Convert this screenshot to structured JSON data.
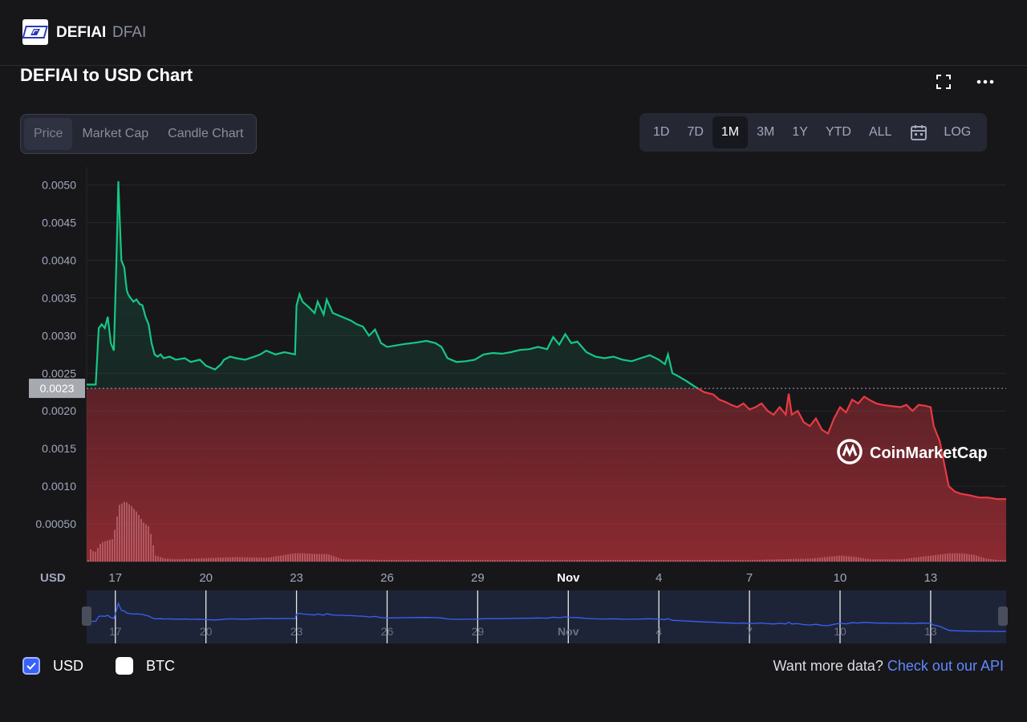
{
  "header": {
    "coin_name": "DEFIAI",
    "coin_symbol": "DFAI"
  },
  "chart_title": "DEFIAI to USD Chart",
  "chart_tabs": [
    "Price",
    "Market Cap",
    "Candle Chart"
  ],
  "active_chart_tab": "Price",
  "range_options": [
    "1D",
    "7D",
    "1M",
    "3M",
    "1Y",
    "YTD",
    "ALL"
  ],
  "active_range": "1M",
  "log_label": "LOG",
  "icons": {
    "fullscreen": "fullscreen-icon",
    "more": "more-icon",
    "calendar": "calendar-icon",
    "checkbox": "checkmark-icon"
  },
  "colors": {
    "up": "#16c784",
    "down": "#ea3943",
    "navigator": "#3861fb",
    "background": "#17171a"
  },
  "currency_toggles": [
    {
      "label": "USD",
      "checked": true
    },
    {
      "label": "BTC",
      "checked": false
    }
  ],
  "footer": {
    "prompt": "Want more data?",
    "link": "Check out our API"
  },
  "watermark": "CoinMarketCap",
  "chart_data": {
    "type": "line",
    "ylabel": "USD",
    "y_ticks": [
      "0.00050",
      "0.0010",
      "0.0015",
      "0.0020",
      "0.0025",
      "0.0030",
      "0.0035",
      "0.0040",
      "0.0045",
      "0.0050"
    ],
    "ylim": [
      0.0,
      0.0052
    ],
    "x_ticks": [
      "17",
      "20",
      "23",
      "26",
      "29",
      "Nov",
      "4",
      "7",
      "10",
      "13"
    ],
    "x_tick_days": [
      17,
      20,
      23,
      26,
      29,
      32,
      35,
      38,
      41,
      44
    ],
    "xlim_days": [
      16.05,
      46.5
    ],
    "reference_price": 0.0023,
    "reference_label": "0.0023",
    "grid": true,
    "price_series": {
      "day": [
        16.05,
        16.35,
        16.45,
        16.55,
        16.65,
        16.75,
        16.85,
        16.95,
        17.0,
        17.05,
        17.1,
        17.15,
        17.2,
        17.3,
        17.35,
        17.38,
        17.42,
        17.5,
        17.6,
        17.7,
        17.8,
        17.9,
        18.0,
        18.1,
        18.2,
        18.3,
        18.4,
        18.5,
        18.6,
        18.8,
        19.0,
        19.3,
        19.5,
        19.8,
        20.0,
        20.3,
        20.5,
        20.6,
        20.8,
        21.0,
        21.3,
        21.6,
        21.8,
        22.0,
        22.3,
        22.6,
        22.95,
        23.0,
        23.1,
        23.2,
        23.4,
        23.6,
        23.7,
        23.9,
        24.0,
        24.2,
        24.5,
        24.8,
        25.0,
        25.2,
        25.4,
        25.6,
        25.8,
        26.0,
        26.3,
        26.6,
        27.0,
        27.3,
        27.6,
        27.8,
        28.0,
        28.3,
        28.6,
        28.9,
        29.2,
        29.5,
        29.8,
        30.1,
        30.4,
        30.7,
        31.0,
        31.3,
        31.5,
        31.7,
        31.9,
        32.1,
        32.3,
        32.6,
        32.9,
        33.2,
        33.5,
        33.8,
        34.1,
        34.4,
        34.7,
        35.0,
        35.2,
        35.3,
        35.45,
        35.6,
        35.9,
        36.2,
        36.5,
        36.8,
        37.0,
        37.2,
        37.4,
        37.6,
        37.8,
        38.0,
        38.2,
        38.4,
        38.6,
        38.8,
        39.0,
        39.2,
        39.3,
        39.4,
        39.6,
        39.8,
        40.0,
        40.2,
        40.4,
        40.6,
        40.8,
        41.0,
        41.2,
        41.4,
        41.6,
        41.8,
        42.0,
        42.2,
        42.4,
        42.6,
        42.8,
        43.0,
        43.2,
        43.4,
        43.6,
        43.8,
        44.0,
        44.1,
        44.2,
        44.3,
        44.4,
        44.5,
        44.6,
        44.8,
        45.0,
        45.3,
        45.6,
        45.9,
        46.2,
        46.5
      ],
      "price": [
        0.00235,
        0.00235,
        0.0031,
        0.00315,
        0.0031,
        0.00325,
        0.0029,
        0.0028,
        0.0035,
        0.0042,
        0.00505,
        0.0045,
        0.004,
        0.0039,
        0.0037,
        0.0036,
        0.00355,
        0.0035,
        0.00345,
        0.00348,
        0.00342,
        0.0034,
        0.00325,
        0.00315,
        0.0029,
        0.00275,
        0.00272,
        0.00275,
        0.0027,
        0.00272,
        0.00268,
        0.0027,
        0.00265,
        0.00268,
        0.0026,
        0.00255,
        0.00262,
        0.00268,
        0.00272,
        0.0027,
        0.00268,
        0.00272,
        0.00275,
        0.0028,
        0.00275,
        0.00278,
        0.00275,
        0.0034,
        0.00355,
        0.00345,
        0.00338,
        0.0033,
        0.00345,
        0.00328,
        0.00348,
        0.0033,
        0.00325,
        0.0032,
        0.00315,
        0.00312,
        0.003,
        0.00308,
        0.0029,
        0.00285,
        0.00287,
        0.00289,
        0.00291,
        0.00293,
        0.0029,
        0.00285,
        0.0027,
        0.00265,
        0.00266,
        0.00268,
        0.00275,
        0.00277,
        0.00276,
        0.00278,
        0.00281,
        0.00282,
        0.00285,
        0.00282,
        0.00298,
        0.00288,
        0.00302,
        0.0029,
        0.00292,
        0.00278,
        0.00272,
        0.0027,
        0.00272,
        0.00268,
        0.00266,
        0.0027,
        0.00274,
        0.00268,
        0.00262,
        0.00275,
        0.0025,
        0.00247,
        0.0024,
        0.00232,
        0.00225,
        0.00222,
        0.00215,
        0.00212,
        0.00208,
        0.00205,
        0.0021,
        0.00202,
        0.00205,
        0.0021,
        0.002,
        0.00195,
        0.00205,
        0.00195,
        0.00223,
        0.00195,
        0.002,
        0.00185,
        0.0018,
        0.0019,
        0.00175,
        0.0017,
        0.0019,
        0.00205,
        0.00198,
        0.00215,
        0.0021,
        0.00219,
        0.00214,
        0.0021,
        0.00208,
        0.00207,
        0.00206,
        0.00205,
        0.00208,
        0.002,
        0.00208,
        0.00207,
        0.00205,
        0.0018,
        0.0017,
        0.0016,
        0.0014,
        0.0012,
        0.001,
        0.00093,
        0.0009,
        0.00088,
        0.00085,
        0.00085,
        0.00083,
        0.00083
      ]
    },
    "volume_series": {
      "day": [
        16.1,
        16.3,
        16.5,
        16.7,
        16.9,
        17.1,
        17.3,
        17.5,
        17.7,
        17.9,
        18.1,
        18.3,
        18.6,
        19.0,
        21.0,
        22.0,
        22.9,
        23.2,
        23.6,
        24.0,
        24.5,
        26.0,
        30.0,
        35.0,
        38.0,
        40.0,
        41.0,
        41.5,
        42.0,
        43.0,
        44.2,
        44.6,
        45.0,
        45.4,
        45.8,
        46.2
      ],
      "volume": [
        0.00018,
        0.00012,
        0.00025,
        0.00028,
        0.0003,
        0.00075,
        0.0008,
        0.00074,
        0.00065,
        0.00052,
        0.00046,
        8e-05,
        4e-05,
        3e-05,
        6e-05,
        5e-05,
        0.00011,
        0.00011,
        0.0001,
        0.0001,
        3e-05,
        2e-05,
        2e-05,
        2e-05,
        2e-05,
        4e-05,
        8e-05,
        6e-05,
        3e-05,
        3e-05,
        9e-05,
        0.00011,
        0.00011,
        9e-05,
        4e-05,
        2e-05
      ]
    }
  }
}
